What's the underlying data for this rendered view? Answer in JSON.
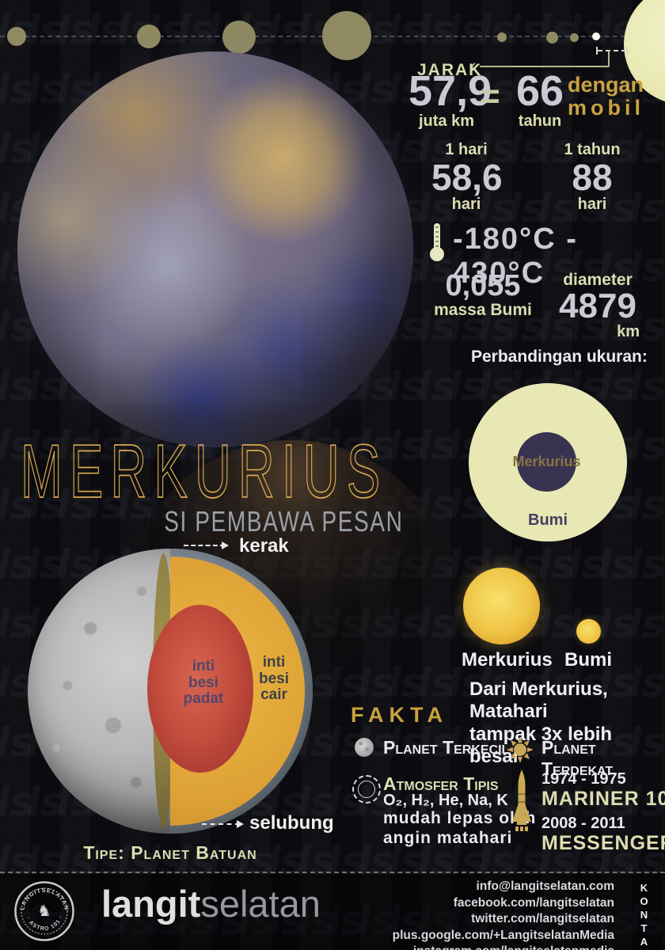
{
  "colors": {
    "accent_gold": "#c9a23e",
    "cream": "#ddddb2",
    "number_gray": "#c9cad4",
    "earth_circle": "#e7e8b3",
    "mercury_circle_purple": "#393352",
    "sun_yellow": "#eec344",
    "core_red": "#c44d3d",
    "mantle_amber": "#dda135",
    "crust_gray": "#7b8692",
    "title_gold": "#d9a94e"
  },
  "distance": {
    "jarak_label": "JARAK",
    "value": "57,9",
    "unit": "juta km",
    "equals": "=",
    "car_value": "66",
    "car_unit": "tahun",
    "car_note_1": "dengan",
    "car_note_2": "mobil"
  },
  "stats": {
    "day": {
      "label": "1 hari",
      "value": "58,6",
      "unit": "hari"
    },
    "year": {
      "label": "1 tahun",
      "value": "88",
      "unit": "hari"
    },
    "temperature": "-180°C - 430°C",
    "mass": {
      "value": "0,055",
      "unit": "massa Bumi"
    },
    "diameter": {
      "label": "diameter",
      "value": "4879",
      "unit": "km"
    }
  },
  "size_comparison": {
    "title": "Perbandingan ukuran:",
    "inner_label": "Merkurius",
    "outer_label": "Bumi"
  },
  "title": {
    "name": "MERKURIUS",
    "subtitle": "SI PEMBAWA PESAN"
  },
  "structure": {
    "crust_label": "kerak",
    "mantle_label": "selubung",
    "inner_core_label": "inti\nbesi\npadat",
    "outer_core_label": "inti\nbesi\ncair",
    "type_label": "Tipe: Planet Batuan"
  },
  "sun_view": {
    "big_label": "Merkurius",
    "small_label": "Bumi",
    "note_line1": "Dari Merkurius, Matahari",
    "note_line2_normal": "tampak ",
    "note_line2_bold": "3x lebih besar"
  },
  "fakta": {
    "heading": "FAKTA",
    "smallest": "Planet Terkecil",
    "atmosphere_title": "Atmosfer Tipis",
    "atmosphere_gases": "O₂, H₂, He, Na, K",
    "atmosphere_note": "mudah lepas oleh\nangin matahari",
    "closest": "Planet Terdekat",
    "mariner_years": "1974 - 1975",
    "mariner_name": "MARINER 10",
    "messenger_years": "2008 - 2011",
    "messenger_name": "MESSENGER"
  },
  "footer": {
    "brand_bold": "langit",
    "brand_light": "selatan",
    "badge_top": "LANGITSELATAN",
    "badge_bottom": "· ASTRO 101 ·",
    "kontak": "KONTAK",
    "contacts": [
      "info@langitselatan.com",
      "facebook.com/langitselatan",
      "twitter.com/langitselatan",
      "plus.google.com/+LangitselatanMedia",
      "instagram.com/langitselatanmedia"
    ]
  }
}
